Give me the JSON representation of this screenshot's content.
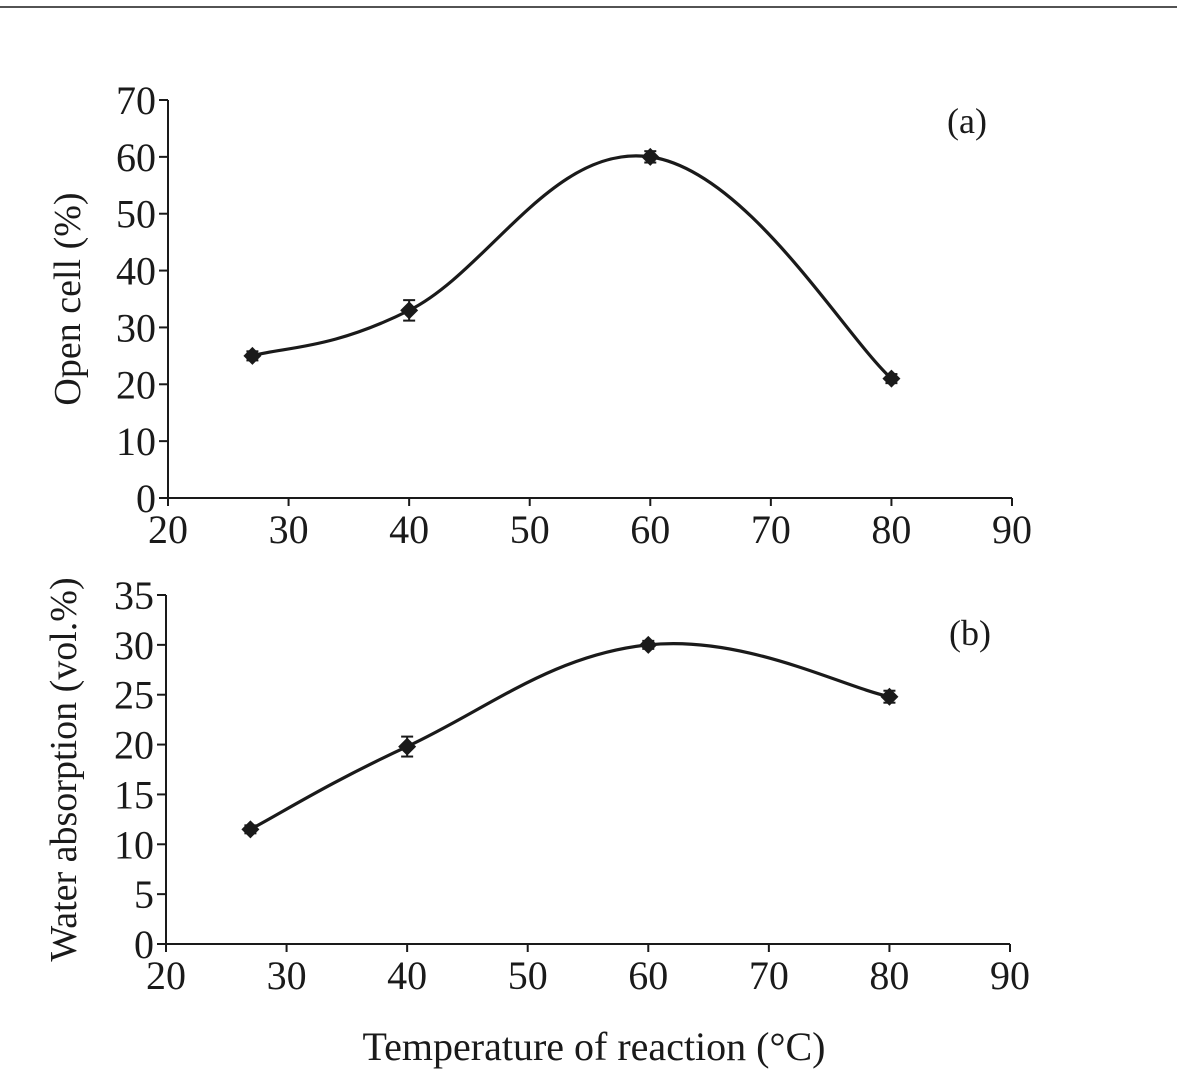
{
  "chart_data": [
    {
      "type": "line",
      "panel_label": "(a)",
      "ylabel": "Open cell (%)",
      "xlabel": "",
      "xlim": [
        20,
        90
      ],
      "ylim": [
        0,
        70
      ],
      "xticks": [
        20,
        30,
        40,
        50,
        60,
        70,
        80,
        90
      ],
      "yticks": [
        0,
        10,
        20,
        30,
        40,
        50,
        60,
        70
      ],
      "grid": false,
      "marker": "diamond",
      "series": [
        {
          "x": [
            27,
            40,
            60,
            80
          ],
          "y": [
            25,
            33,
            60,
            21
          ],
          "error": [
            0.8,
            1.8,
            1.0,
            0.8
          ]
        }
      ]
    },
    {
      "type": "line",
      "panel_label": "(b)",
      "ylabel": "Water absorption (vol.%)",
      "xlabel": "Temperature of reaction (°C)",
      "xlim": [
        20,
        90
      ],
      "ylim": [
        0,
        35
      ],
      "xticks": [
        20,
        30,
        40,
        50,
        60,
        70,
        80,
        90
      ],
      "yticks": [
        0,
        5,
        10,
        15,
        20,
        25,
        30,
        35
      ],
      "grid": false,
      "marker": "diamond",
      "series": [
        {
          "x": [
            27,
            40,
            60,
            80
          ],
          "y": [
            11.5,
            19.8,
            30,
            24.8
          ],
          "error": [
            0.4,
            1.0,
            0.4,
            0.6
          ]
        }
      ]
    }
  ],
  "colors": {
    "ink": "#1a1a1a",
    "background": "#ffffff"
  }
}
